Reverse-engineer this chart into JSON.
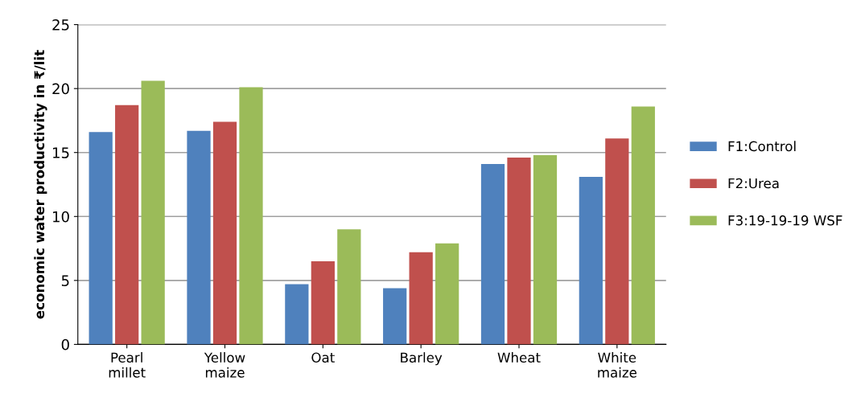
{
  "chart_data": {
    "type": "bar",
    "ylabel": "economic water productivity in ₹/lit",
    "categories": [
      "Pearl\nmillet",
      "Yellow\nmaize",
      "Oat",
      "Barley",
      "Wheat",
      "White\nmaize"
    ],
    "series": [
      {
        "name": "F1:Control",
        "color": "#4f81bd",
        "values": [
          16.6,
          16.7,
          4.7,
          4.4,
          14.1,
          13.1
        ]
      },
      {
        "name": "F2:Urea",
        "color": "#c0504d",
        "values": [
          18.7,
          17.4,
          6.5,
          7.2,
          14.6,
          16.1
        ]
      },
      {
        "name": "F3:19-19-19 WSF",
        "color": "#9bbb59",
        "values": [
          20.6,
          20.1,
          9.0,
          7.9,
          14.8,
          18.6
        ]
      }
    ],
    "ylim": [
      0,
      25
    ],
    "yticks": [
      0,
      5,
      10,
      15,
      20,
      25
    ],
    "grid": "y",
    "legend": "right"
  }
}
